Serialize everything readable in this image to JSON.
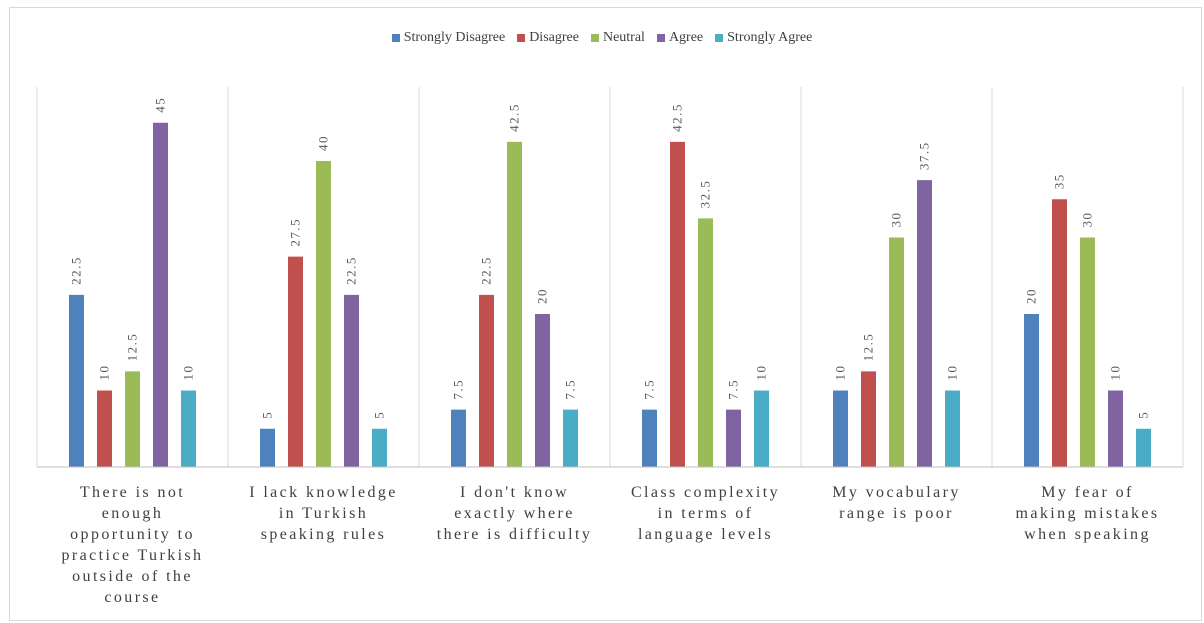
{
  "chart_data": {
    "type": "bar",
    "categories": [
      "There is not enough opportunity to practice Turkish outside of the course",
      "I lack knowledge in Turkish speaking rules",
      "I don't know exactly where there is difficulty",
      "Class complexity in terms of language levels",
      "My vocabulary range is poor",
      "My fear of making mistakes when speaking"
    ],
    "category_lines": [
      [
        "There is not",
        "enough",
        "opportunity to",
        "practice Turkish",
        "outside of the",
        "course"
      ],
      [
        "I lack knowledge",
        "in Turkish",
        "speaking rules"
      ],
      [
        "I don't know",
        "exactly where",
        "there is difficulty"
      ],
      [
        "Class complexity",
        "in terms of",
        "language levels"
      ],
      [
        "My vocabulary",
        "range is poor"
      ],
      [
        "My fear of",
        "making mistakes",
        "when speaking"
      ]
    ],
    "series": [
      {
        "name": "Strongly Disagree",
        "color": "#4f81bd",
        "values": [
          22.5,
          5,
          7.5,
          7.5,
          10,
          20
        ]
      },
      {
        "name": "Disagree",
        "color": "#c0504d",
        "values": [
          10,
          27.5,
          22.5,
          42.5,
          12.5,
          35
        ]
      },
      {
        "name": "Neutral",
        "color": "#9bbb59",
        "values": [
          12.5,
          40,
          42.5,
          32.5,
          30,
          30
        ]
      },
      {
        "name": "Agree",
        "color": "#8064a2",
        "values": [
          45,
          22.5,
          20,
          7.5,
          37.5,
          10
        ]
      },
      {
        "name": "Strongly Agree",
        "color": "#4bacc6",
        "values": [
          10,
          5,
          7.5,
          10,
          10,
          5
        ]
      }
    ],
    "ylim": [
      0,
      50
    ],
    "legend_position": "top-center",
    "grid": "vertical category separators",
    "data_labels": true
  }
}
